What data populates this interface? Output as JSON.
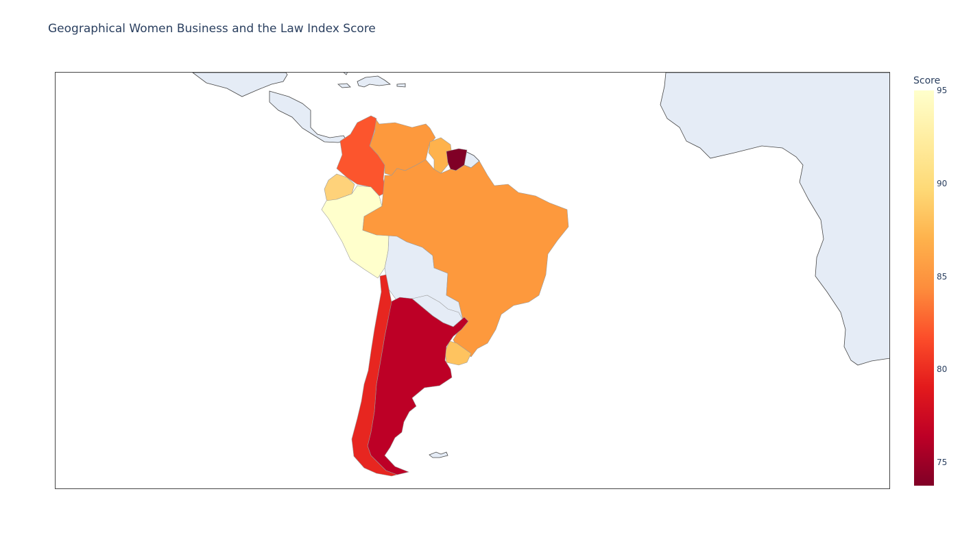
{
  "title": "Geographical Women Business and the Law Index Score",
  "colorbar": {
    "title": "Score",
    "min": 73.75,
    "max": 95,
    "ticks": [
      "95",
      "90",
      "85",
      "80",
      "75"
    ],
    "tick_values": [
      95,
      90,
      85,
      80,
      75
    ],
    "colorscale": [
      "#800026",
      "#bd0026",
      "#e31a1c",
      "#fc4e2a",
      "#fd8d3c",
      "#feb24c",
      "#fed976",
      "#ffeda0",
      "#ffffcc"
    ]
  },
  "map": {
    "no_data_fill": "#e5ecf6",
    "border_color": "#444444",
    "projection": "equirectangular",
    "countries": [
      {
        "name": "Peru",
        "score": 95
      },
      {
        "name": "Ecuador",
        "score": 89.4
      },
      {
        "name": "Colombia",
        "score": 81.9
      },
      {
        "name": "Venezuela",
        "score": 85
      },
      {
        "name": "Guyana",
        "score": 86.9
      },
      {
        "name": "Suriname",
        "score": 73.8
      },
      {
        "name": "Brazil",
        "score": 85
      },
      {
        "name": "Uruguay",
        "score": 88.1
      },
      {
        "name": "Argentina",
        "score": 77.5
      },
      {
        "name": "Chile",
        "score": 80
      }
    ]
  }
}
